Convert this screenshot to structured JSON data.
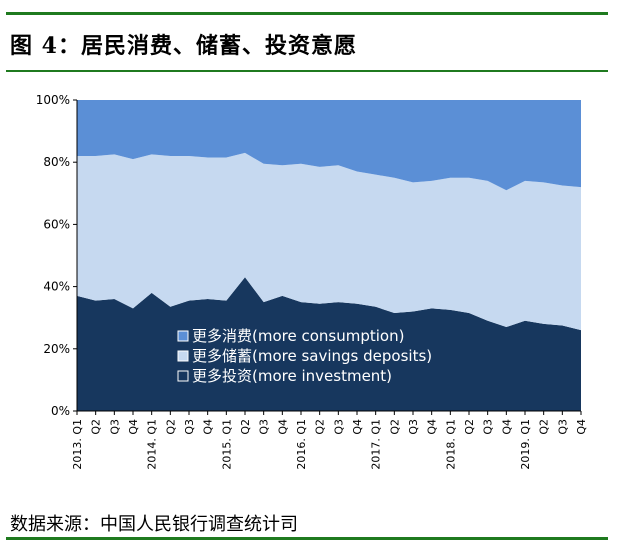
{
  "figure": {
    "title": "图 4：居民消费、储蓄、投资意愿",
    "source": "数据来源：中国人民银行调查统计司"
  },
  "colors": {
    "consumption": "#5b8fd6",
    "savings": "#c6d9f0",
    "investment": "#17375e",
    "rule": "#1f7a1f"
  },
  "chart_data": {
    "type": "area",
    "stacked": true,
    "ylim": [
      0,
      100
    ],
    "yticks": [
      "0%",
      "20%",
      "40%",
      "60%",
      "80%",
      "100%"
    ],
    "legend_position": "bottom-center",
    "x": [
      "2013. Q1",
      "Q2",
      "Q3",
      "Q4",
      "2014. Q1",
      "Q2",
      "Q3",
      "Q4",
      "2015. Q1",
      "Q2",
      "Q3",
      "Q4",
      "2016. Q1",
      "Q2",
      "Q3",
      "Q4",
      "2017. Q1",
      "Q2",
      "Q3",
      "Q4",
      "2018. Q1",
      "Q2",
      "Q3",
      "Q4",
      "2019. Q1",
      "Q2",
      "Q3",
      "Q4"
    ],
    "series": [
      {
        "name": "更多投资(more investment)",
        "values": [
          37,
          35.5,
          36,
          33,
          38,
          33.5,
          35.5,
          36,
          35.5,
          43,
          35,
          37,
          35,
          34.5,
          35,
          34.5,
          33.5,
          31.5,
          32,
          33,
          32.5,
          31.5,
          29,
          27,
          29,
          28,
          27.5,
          26
        ]
      },
      {
        "name": "更多储蓄(more savings deposits)",
        "values": [
          45,
          46.5,
          46.5,
          48,
          44.5,
          48.5,
          46.5,
          45.5,
          46,
          40,
          44.5,
          42,
          44.5,
          44,
          44,
          42.5,
          42.5,
          43.5,
          41.5,
          41,
          42.5,
          43.5,
          45,
          44,
          45,
          45.5,
          45,
          46
        ]
      },
      {
        "name": "更多消费(more consumption)",
        "values": [
          18,
          18,
          17.5,
          19,
          17.5,
          18,
          18,
          18.5,
          18.5,
          17,
          20.5,
          21,
          20.5,
          21.5,
          21,
          23,
          24,
          25,
          26.5,
          26,
          25,
          25,
          26,
          29,
          26,
          26.5,
          27.5,
          28
        ]
      }
    ]
  }
}
